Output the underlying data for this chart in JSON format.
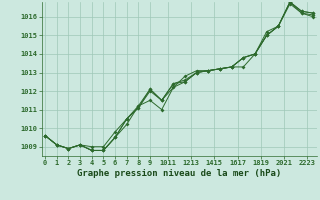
{
  "title": "Graphe pression niveau de la mer (hPa)",
  "x_values": [
    0,
    1,
    2,
    3,
    4,
    5,
    6,
    7,
    8,
    9,
    10,
    11,
    12,
    13,
    14,
    15,
    16,
    17,
    18,
    19,
    20,
    21,
    22,
    23
  ],
  "x_labels": [
    "0",
    "1",
    "2",
    "3",
    "4",
    "5",
    "6",
    "7",
    "8",
    "9",
    "1011",
    "1213",
    "1415",
    "1617",
    "1819",
    "2021",
    "2223"
  ],
  "line1": [
    1009.6,
    1009.1,
    1008.9,
    1009.1,
    1008.8,
    1008.8,
    1009.5,
    1010.2,
    1011.2,
    1011.5,
    1011.0,
    1012.2,
    1012.8,
    1013.1,
    1013.1,
    1013.2,
    1013.3,
    1013.3,
    1014.0,
    1015.0,
    1015.5,
    1016.8,
    1016.3,
    1016.2
  ],
  "line2": [
    1009.6,
    1009.1,
    1008.9,
    1009.1,
    1008.8,
    1008.8,
    1009.5,
    1010.5,
    1011.2,
    1012.1,
    1011.5,
    1012.4,
    1012.6,
    1013.0,
    1013.1,
    1013.2,
    1013.3,
    1013.8,
    1014.0,
    1015.2,
    1015.5,
    1016.8,
    1016.3,
    1016.2
  ],
  "line3": [
    1009.6,
    1009.1,
    1008.9,
    1009.1,
    1008.8,
    1008.8,
    1009.5,
    1010.5,
    1011.1,
    1012.1,
    1011.5,
    1012.4,
    1012.5,
    1013.0,
    1013.1,
    1013.2,
    1013.3,
    1013.8,
    1014.0,
    1015.0,
    1015.5,
    1016.8,
    1016.2,
    1016.1
  ],
  "line4": [
    1009.6,
    1009.1,
    1008.9,
    1009.1,
    1009.0,
    1009.0,
    1009.8,
    1010.5,
    1011.1,
    1012.0,
    1011.5,
    1012.2,
    1012.5,
    1013.0,
    1013.1,
    1013.2,
    1013.3,
    1013.8,
    1014.0,
    1015.0,
    1015.5,
    1016.7,
    1016.2,
    1016.0
  ],
  "ylim_min": 1008.5,
  "ylim_max": 1016.8,
  "yticks": [
    1009,
    1010,
    1011,
    1012,
    1013,
    1014,
    1015,
    1016
  ],
  "line_color": "#2d6a2d",
  "bg_color": "#cce8df",
  "grid_color": "#9fc8b8",
  "title_color": "#1a4a1a",
  "title_fontsize": 6.5,
  "tick_fontsize": 5.0,
  "marker_size": 2.0
}
